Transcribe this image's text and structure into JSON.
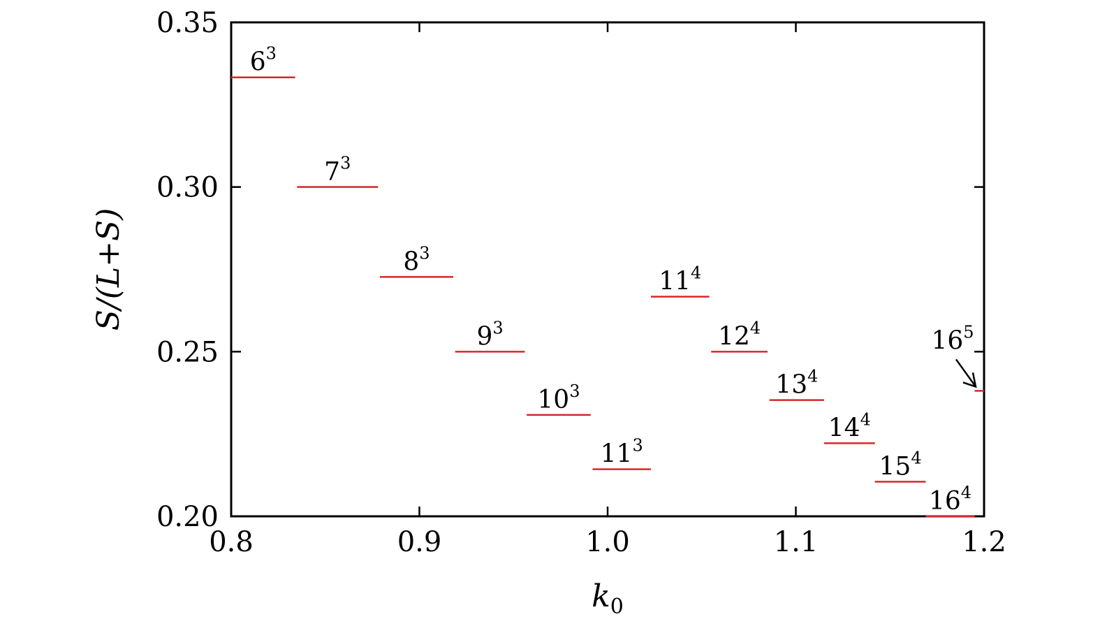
{
  "chart_data": {
    "type": "line",
    "xlabel": "k0",
    "ylabel": "S/(L+S)",
    "xlim": [
      0.8,
      1.2
    ],
    "ylim": [
      0.2,
      0.35
    ],
    "x_ticks": [
      0.8,
      0.9,
      1.0,
      1.1,
      1.2
    ],
    "x_tick_labels": [
      "0.8",
      "0.9",
      "1.0",
      "1.1",
      "1.2"
    ],
    "y_ticks": [
      0.2,
      0.25,
      0.3,
      0.35
    ],
    "y_tick_labels": [
      "0.20",
      "0.25",
      "0.30",
      "0.35"
    ],
    "grid": false,
    "series_color": "#d62728",
    "segments": [
      {
        "base": "6",
        "exp": "3",
        "x_start": 0.8,
        "x_end": 0.834,
        "y": 0.3333
      },
      {
        "base": "7",
        "exp": "3",
        "x_start": 0.835,
        "x_end": 0.878,
        "y": 0.3
      },
      {
        "base": "8",
        "exp": "3",
        "x_start": 0.879,
        "x_end": 0.918,
        "y": 0.2727
      },
      {
        "base": "9",
        "exp": "3",
        "x_start": 0.919,
        "x_end": 0.956,
        "y": 0.25
      },
      {
        "base": "10",
        "exp": "3",
        "x_start": 0.957,
        "x_end": 0.991,
        "y": 0.2308
      },
      {
        "base": "11",
        "exp": "3",
        "x_start": 0.992,
        "x_end": 1.023,
        "y": 0.2143
      },
      {
        "base": "11",
        "exp": "4",
        "x_start": 1.023,
        "x_end": 1.054,
        "y": 0.2667
      },
      {
        "base": "12",
        "exp": "4",
        "x_start": 1.055,
        "x_end": 1.085,
        "y": 0.25
      },
      {
        "base": "13",
        "exp": "4",
        "x_start": 1.086,
        "x_end": 1.115,
        "y": 0.2353
      },
      {
        "base": "14",
        "exp": "4",
        "x_start": 1.115,
        "x_end": 1.142,
        "y": 0.2222
      },
      {
        "base": "15",
        "exp": "4",
        "x_start": 1.142,
        "x_end": 1.169,
        "y": 0.2105
      },
      {
        "base": "16",
        "exp": "4",
        "x_start": 1.169,
        "x_end": 1.195,
        "y": 0.2
      },
      {
        "base": "16",
        "exp": "5",
        "x_start": 1.195,
        "x_end": 1.2,
        "y": 0.2381
      }
    ]
  }
}
